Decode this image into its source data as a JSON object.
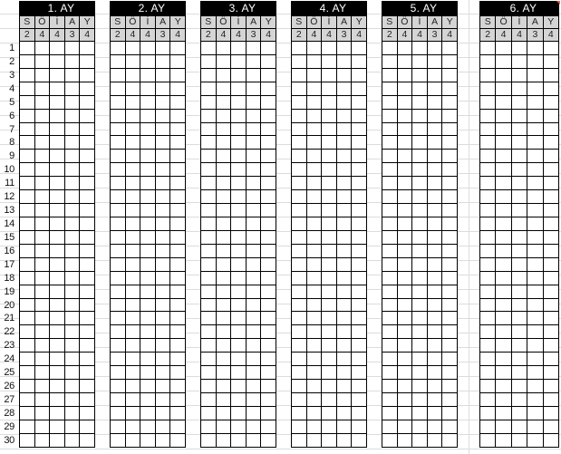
{
  "sheet": {
    "months": [
      {
        "title": "1. AY"
      },
      {
        "title": "2. AY"
      },
      {
        "title": "3. AY"
      },
      {
        "title": "4. AY"
      },
      {
        "title": "5. AY"
      },
      {
        "title": "6. AY"
      }
    ],
    "columns": [
      "S",
      "Ö",
      "İ",
      "A",
      "Y"
    ],
    "column_counts": [
      "2",
      "4",
      "4",
      "3",
      "4"
    ],
    "row_numbers": [
      "1",
      "2",
      "3",
      "4",
      "5",
      "6",
      "7",
      "8",
      "9",
      "10",
      "11",
      "12",
      "13",
      "14",
      "15",
      "16",
      "17",
      "18",
      "19",
      "20",
      "21",
      "22",
      "23",
      "24",
      "25",
      "26",
      "27",
      "28",
      "29",
      "30"
    ],
    "colors": {
      "header_bg": "#000000",
      "header_text": "#ffffff",
      "subheader_bg": "#d5d5d5",
      "border": "#000000",
      "gridline": "#dcdcdc",
      "marker": "#e0604a"
    }
  }
}
